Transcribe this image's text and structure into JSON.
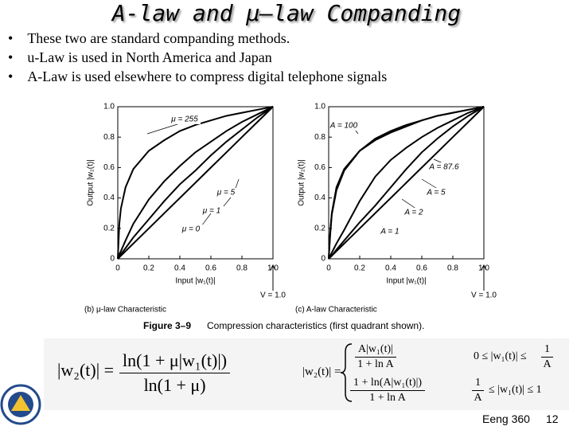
{
  "slide": {
    "title": "A-law and μ–law Companding",
    "bullets": [
      "These two are standard companding methods.",
      "u-Law is used in North America and Japan",
      "A-Law is used elsewhere to compress digital telephone signals"
    ],
    "figure_label": "Figure 3–9",
    "figure_caption": "Compression characteristics (first quadrant shown).",
    "mu_formula": {
      "lhs": "|w₂(t)| =",
      "numerator": "ln(1 + μ|w₁(t)|)",
      "denominator": "ln(1 + μ)"
    },
    "a_formula": {
      "lhs": "|w₂(t)| =",
      "case1_numerator": "A|w₁(t)|",
      "case1_denominator": "1 + ln A",
      "case1_condition": "0 ≤ |w₁(t)| ≤",
      "case1_bound_numerator": "1",
      "case1_bound_denominator": "A",
      "case2_numerator": "1 + ln(A|w₁(t)|)",
      "case2_denominator": "1 + ln A",
      "case2_condition": "≤ |w₁(t)| ≤ 1",
      "case2_bound_numerator": "1",
      "case2_bound_denominator": "A"
    },
    "footer": "Eeng 360",
    "page_number": "12"
  },
  "chart_data": [
    {
      "type": "line",
      "caption": "(b) μ-law Characteristic",
      "x_label": "Input |w₁(t)|",
      "y_label": "Output |w₂(t)|",
      "v_label": "V = 1.0",
      "x": [
        0,
        0.01,
        0.02,
        0.05,
        0.1,
        0.2,
        0.3,
        0.4,
        0.5,
        0.6,
        0.7,
        0.8,
        0.9,
        1
      ],
      "series": [
        {
          "name": "μ = 255",
          "color": "#000000",
          "values": [
            0,
            0.23,
            0.33,
            0.47,
            0.59,
            0.71,
            0.78,
            0.84,
            0.88,
            0.91,
            0.94,
            0.96,
            0.98,
            1
          ]
        },
        {
          "name": "μ = 5",
          "color": "#000000",
          "values": [
            0,
            0.03,
            0.05,
            0.12,
            0.23,
            0.39,
            0.51,
            0.61,
            0.7,
            0.77,
            0.84,
            0.9,
            0.95,
            1
          ]
        },
        {
          "name": "μ = 1",
          "color": "#000000",
          "values": [
            0,
            0.01,
            0.03,
            0.07,
            0.14,
            0.26,
            0.38,
            0.49,
            0.58,
            0.68,
            0.77,
            0.85,
            0.93,
            1
          ]
        },
        {
          "name": "μ = 0",
          "color": "#000000",
          "values": [
            0,
            0.01,
            0.02,
            0.05,
            0.1,
            0.2,
            0.3,
            0.4,
            0.5,
            0.6,
            0.7,
            0.8,
            0.9,
            1
          ]
        }
      ],
      "xlim": [
        0,
        1
      ],
      "ylim": [
        0,
        1
      ],
      "xticks": [
        0,
        0.2,
        0.4,
        0.6,
        0.8,
        {
          "value": 1,
          "label": "1.0"
        }
      ],
      "yticks": [
        0,
        0.2,
        0.4,
        0.6,
        0.8,
        {
          "value": 1,
          "label": "1.0"
        }
      ]
    },
    {
      "type": "line",
      "caption": "(c) A-law Characteristic",
      "x_label": "Input |w₁(t)|",
      "y_label": "Output |w₂(t)|",
      "v_label": "V = 1.0",
      "x": [
        0,
        0.01,
        0.02,
        0.05,
        0.1,
        0.2,
        0.3,
        0.4,
        0.5,
        0.6,
        0.7,
        0.8,
        0.9,
        1
      ],
      "series": [
        {
          "name": "A = 100",
          "color": "#000000",
          "values": [
            0,
            0.18,
            0.3,
            0.47,
            0.59,
            0.71,
            0.79,
            0.84,
            0.88,
            0.91,
            0.94,
            0.96,
            0.98,
            1
          ]
        },
        {
          "name": "A = 87.6",
          "color": "#000000",
          "values": [
            0,
            0.16,
            0.29,
            0.45,
            0.58,
            0.71,
            0.78,
            0.83,
            0.87,
            0.91,
            0.94,
            0.96,
            0.98,
            1
          ]
        },
        {
          "name": "A = 5",
          "color": "#000000",
          "values": [
            0,
            0.02,
            0.04,
            0.1,
            0.19,
            0.38,
            0.54,
            0.65,
            0.73,
            0.8,
            0.86,
            0.91,
            0.96,
            1
          ]
        },
        {
          "name": "A = 2",
          "color": "#000000",
          "values": [
            0,
            0.01,
            0.02,
            0.06,
            0.12,
            0.24,
            0.35,
            0.47,
            0.59,
            0.7,
            0.79,
            0.87,
            0.94,
            1
          ]
        },
        {
          "name": "A = 1",
          "color": "#000000",
          "values": [
            0,
            0.01,
            0.02,
            0.05,
            0.1,
            0.2,
            0.3,
            0.4,
            0.5,
            0.6,
            0.7,
            0.8,
            0.9,
            1
          ]
        }
      ],
      "xlim": [
        0,
        1
      ],
      "ylim": [
        0,
        1
      ],
      "xticks": [
        0,
        0.2,
        0.4,
        0.6,
        0.8,
        {
          "value": 1,
          "label": "1.0"
        }
      ],
      "yticks": [
        0,
        0.2,
        0.4,
        0.6,
        0.8,
        {
          "value": 1,
          "label": "1.0"
        }
      ]
    }
  ]
}
